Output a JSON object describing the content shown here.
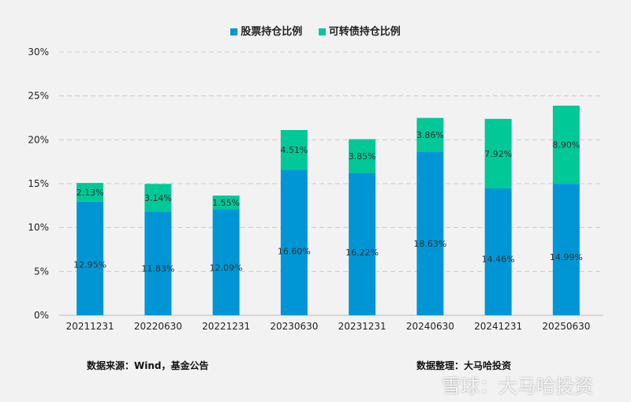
{
  "chart_data": {
    "type": "bar",
    "stacked": true,
    "categories": [
      "20211231",
      "20220630",
      "20221231",
      "20230630",
      "20231231",
      "20240630",
      "20241231",
      "20250630"
    ],
    "series": [
      {
        "name": "股票持仓比例",
        "color": "#0096d6",
        "values": [
          12.95,
          11.83,
          12.09,
          16.6,
          16.22,
          18.63,
          14.46,
          14.99
        ]
      },
      {
        "name": "可转债持仓比例",
        "color": "#00c896",
        "values": [
          2.13,
          3.14,
          1.55,
          4.51,
          3.85,
          3.86,
          7.92,
          8.9
        ]
      }
    ],
    "ylim": [
      0,
      30
    ],
    "yticks": [
      "0%",
      "5%",
      "10%",
      "15%",
      "20%",
      "25%",
      "30%"
    ],
    "ytick_values": [
      0,
      5,
      10,
      15,
      20,
      25,
      30
    ],
    "grid": true,
    "legend_position": "top"
  },
  "footer": {
    "source": "数据来源：Wind，基金公告",
    "compiled": "数据整理：大马哈投资"
  },
  "watermark": "雪球：大马哈投资"
}
